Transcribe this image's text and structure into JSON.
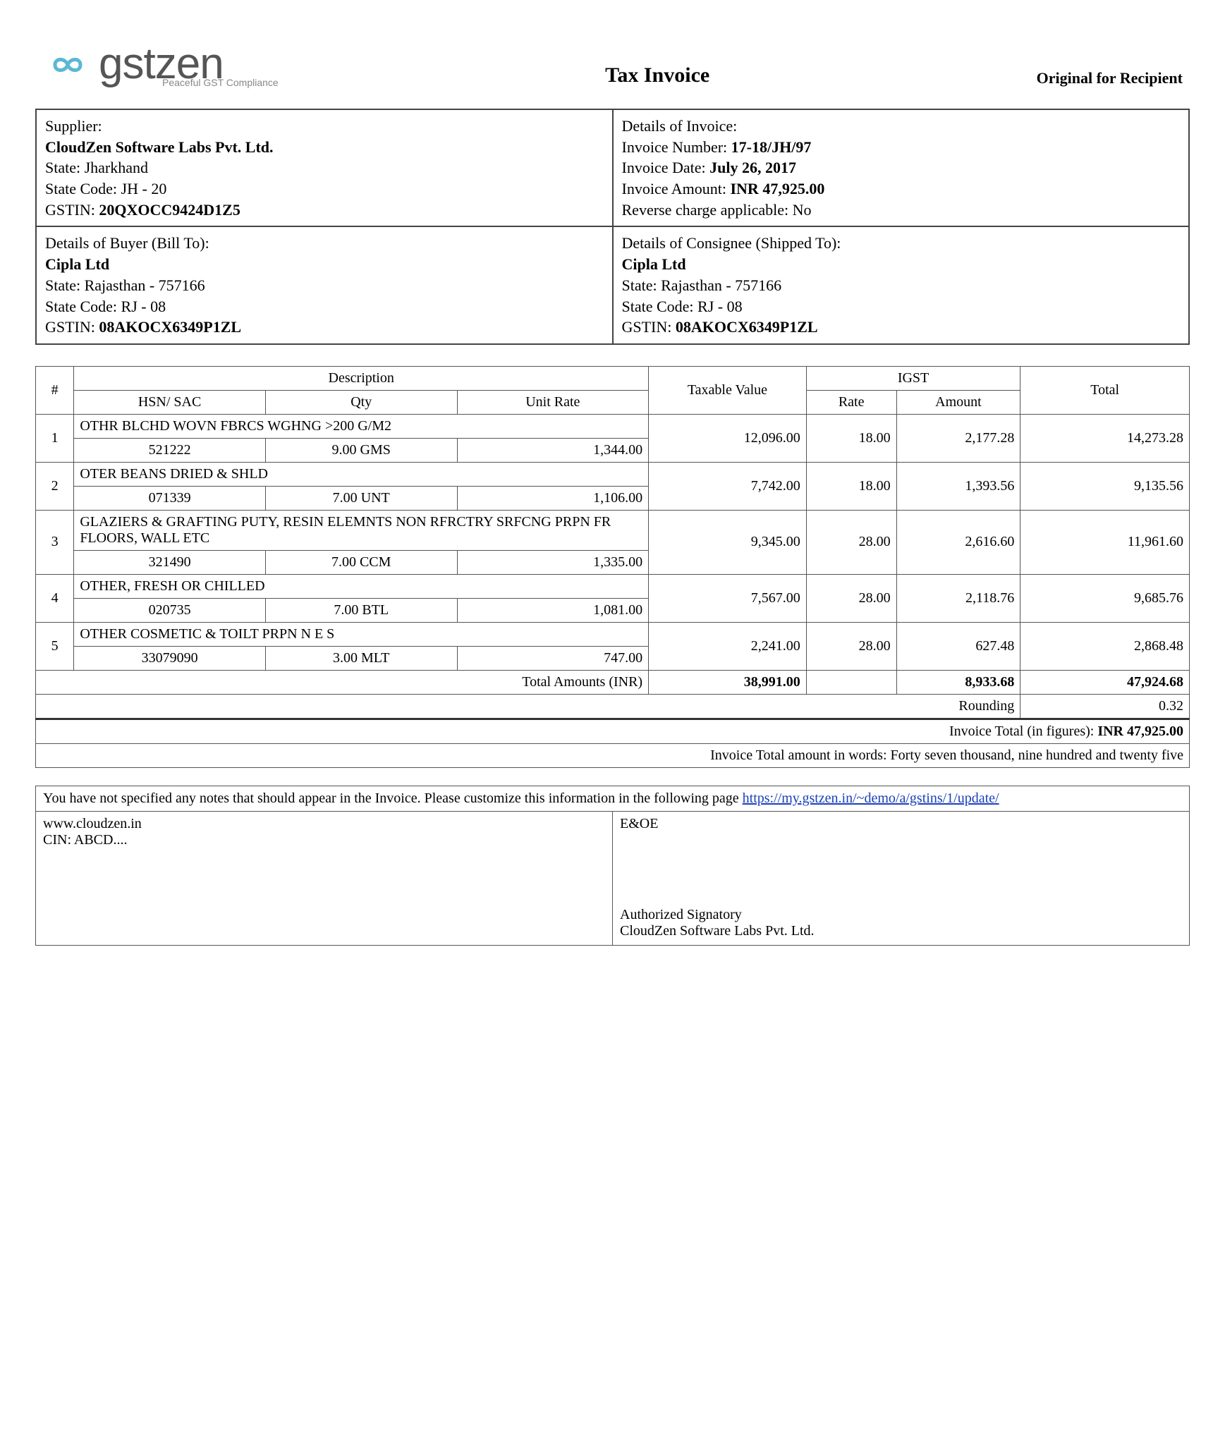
{
  "header": {
    "logo_word": "gstzen",
    "logo_tagline": "Peaceful GST Compliance",
    "doc_title": "Tax Invoice",
    "copy_type": "Original for Recipient"
  },
  "supplier": {
    "heading": "Supplier:",
    "name": "CloudZen Software Labs Pvt. Ltd.",
    "state_line": "State: Jharkhand",
    "state_code_line": "State Code: JH - 20",
    "gstin_label": "GSTIN: ",
    "gstin": "20QXOCC9424D1Z5"
  },
  "invoice": {
    "heading": "Details of Invoice:",
    "number_label": "Invoice Number: ",
    "number": "17-18/JH/97",
    "date_label": "Invoice Date: ",
    "date": "July 26, 2017",
    "amount_label": "Invoice Amount: ",
    "amount": "INR 47,925.00",
    "rcm_line": "Reverse charge applicable: No"
  },
  "buyer": {
    "heading": "Details of Buyer (Bill To):",
    "name": "Cipla Ltd",
    "state_line": "State: Rajasthan - 757166",
    "state_code_line": "State Code: RJ - 08",
    "gstin_label": "GSTIN: ",
    "gstin": "08AKOCX6349P1ZL"
  },
  "consignee": {
    "heading": "Details of Consignee (Shipped To):",
    "name": "Cipla Ltd",
    "state_line": "State: Rajasthan - 757166",
    "state_code_line": "State Code: RJ - 08",
    "gstin_label": "GSTIN: ",
    "gstin": "08AKOCX6349P1ZL"
  },
  "columns": {
    "hash": "#",
    "description": "Description",
    "hsn": "HSN/ SAC",
    "qty": "Qty",
    "unit_rate": "Unit Rate",
    "taxable": "Taxable Value",
    "igst": "IGST",
    "rate": "Rate",
    "amount": "Amount",
    "total": "Total"
  },
  "items": [
    {
      "n": "1",
      "desc": "OTHR BLCHD WOVN FBRCS WGHNG >200 G/M2",
      "hsn": "521222",
      "qty": "9.00 GMS",
      "rate_unit": "1,344.00",
      "taxable": "12,096.00",
      "igst_rate": "18.00",
      "igst_amt": "2,177.28",
      "total": "14,273.28"
    },
    {
      "n": "2",
      "desc": "OTER BEANS DRIED & SHLD",
      "hsn": "071339",
      "qty": "7.00 UNT",
      "rate_unit": "1,106.00",
      "taxable": "7,742.00",
      "igst_rate": "18.00",
      "igst_amt": "1,393.56",
      "total": "9,135.56"
    },
    {
      "n": "3",
      "desc": "GLAZIERS & GRAFTING PUTY, RESIN ELEMNTS NON RFRCTRY SRFCNG PRPN FR FLOORS, WALL ETC",
      "hsn": "321490",
      "qty": "7.00 CCM",
      "rate_unit": "1,335.00",
      "taxable": "9,345.00",
      "igst_rate": "28.00",
      "igst_amt": "2,616.60",
      "total": "11,961.60"
    },
    {
      "n": "4",
      "desc": "OTHER, FRESH OR CHILLED",
      "hsn": "020735",
      "qty": "7.00 BTL",
      "rate_unit": "1,081.00",
      "taxable": "7,567.00",
      "igst_rate": "28.00",
      "igst_amt": "2,118.76",
      "total": "9,685.76"
    },
    {
      "n": "5",
      "desc": "OTHER COSMETIC & TOILT PRPN N E S",
      "hsn": "33079090",
      "qty": "3.00 MLT",
      "rate_unit": "747.00",
      "taxable": "2,241.00",
      "igst_rate": "28.00",
      "igst_amt": "627.48",
      "total": "2,868.48"
    }
  ],
  "totals": {
    "label": "Total Amounts (INR)",
    "taxable": "38,991.00",
    "igst_amt": "8,933.68",
    "grand": "47,924.68",
    "rounding_label": "Rounding",
    "rounding": "0.32",
    "figures_label": "Invoice Total (in figures): ",
    "figures": "INR 47,925.00",
    "words_label": "Invoice Total amount in words: ",
    "words": "Forty seven thousand, nine hundred and twenty five"
  },
  "footer": {
    "notes_text": "You have not specified any notes that should appear in the Invoice. Please customize this information in the following page ",
    "notes_link": "https://my.gstzen.in/~demo/a/gstins/1/update/",
    "website": "www.cloudzen.in",
    "cin": "CIN: ABCD....",
    "eoe": "E&OE",
    "signatory_label": "Authorized Signatory",
    "signatory_company": "CloudZen Software Labs Pvt. Ltd."
  },
  "style": {
    "border_color": "#444",
    "icon_color": "#5bb8d4",
    "text_color": "#000000",
    "muted_color": "#888888"
  }
}
